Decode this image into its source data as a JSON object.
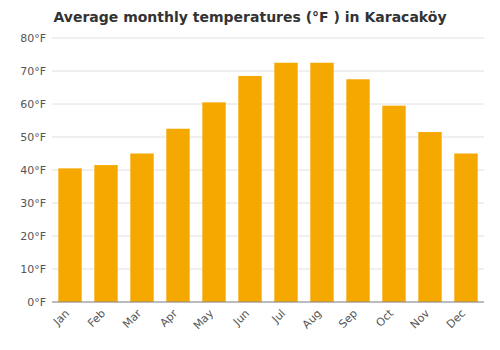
{
  "chart_data": {
    "type": "bar",
    "title": "Average monthly temperatures (°F ) in Karacaköy",
    "categories": [
      "Jan",
      "Feb",
      "Mar",
      "Apr",
      "May",
      "Jun",
      "Jul",
      "Aug",
      "Sep",
      "Oct",
      "Nov",
      "Dec"
    ],
    "values": [
      40.5,
      41.5,
      45.0,
      52.5,
      60.5,
      68.5,
      72.5,
      72.5,
      67.5,
      59.5,
      51.5,
      45.0
    ],
    "color": "#F5A800",
    "ylim": [
      0,
      80
    ],
    "yticks": [
      {
        "value": 0,
        "label": "0°F"
      },
      {
        "value": 10,
        "label": "10°F"
      },
      {
        "value": 20,
        "label": "20°F"
      },
      {
        "value": 30,
        "label": "30°F"
      },
      {
        "value": 40,
        "label": "40°F"
      },
      {
        "value": 50,
        "label": "50°F"
      },
      {
        "value": 60,
        "label": "60°F"
      },
      {
        "value": 70,
        "label": "70°F"
      },
      {
        "value": 80,
        "label": "80°F"
      }
    ],
    "grid": true
  }
}
